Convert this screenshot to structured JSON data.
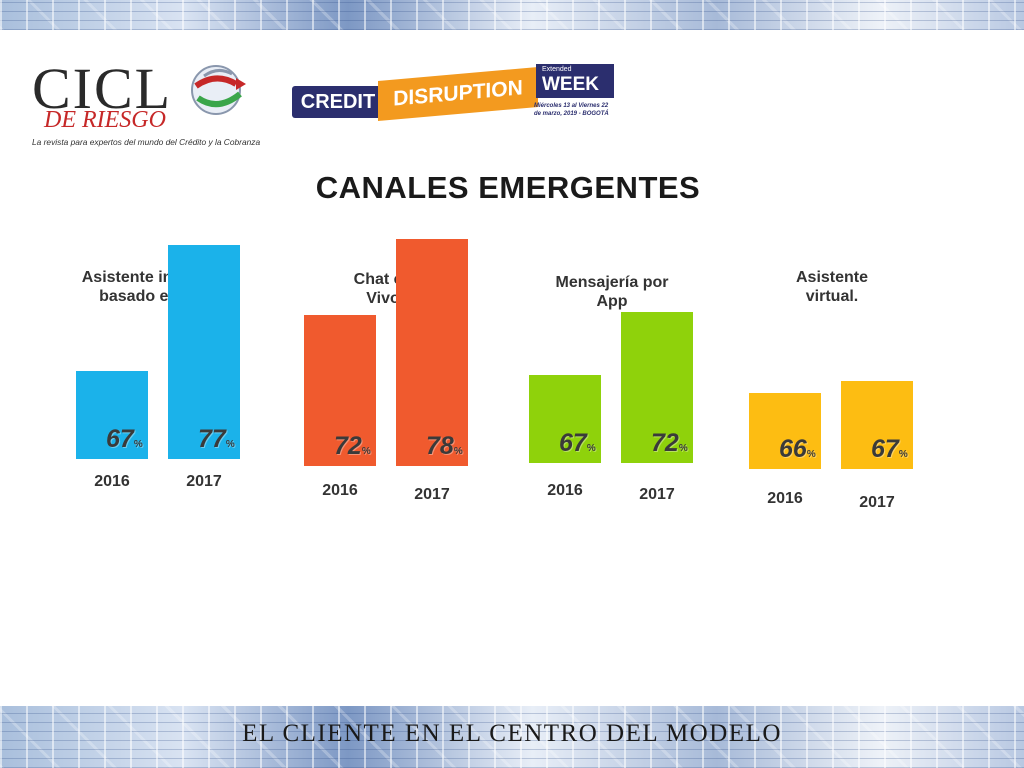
{
  "header": {
    "logo_ciclo": {
      "word": "CICL",
      "sub": "DE RIESGO",
      "tagline": "La revista para expertos del mundo del Crédito y la Cobranza"
    },
    "logo_event": {
      "credit": "CREDIT",
      "disruption": "DISRUPTION",
      "extended": "Extended",
      "week": "WEEK",
      "dates_line1": "Miércoles 13 al Viernes 22",
      "dates_line2": "de marzo, 2019 - BOGOTÁ"
    }
  },
  "title": "CANALES EMERGENTES",
  "footer": "EL CLIENTE  EN  EL  CENTRO  DEL  MODELO",
  "colors": {
    "group1": "#1bb2ea",
    "group2": "#f05a2e",
    "group3": "#8fd20b",
    "group4": "#fdbd12"
  },
  "chart_data": {
    "type": "bar",
    "title": "CANALES EMERGENTES",
    "value_suffix": "%",
    "groups": [
      {
        "label": "Asistente inteligente basado en texto",
        "label_lines": [
          "Asistente inteligente",
          "basado en texto"
        ],
        "color": "#1bb2ea",
        "categories": [
          "2016",
          "2017"
        ],
        "values": [
          67,
          77
        ]
      },
      {
        "label": "Chat en Vivo",
        "label_lines": [
          "Chat en",
          "Vivo"
        ],
        "color": "#f05a2e",
        "categories": [
          "2016",
          "2017"
        ],
        "values": [
          72,
          78
        ]
      },
      {
        "label": "Mensajería por App",
        "label_lines": [
          "Mensajería por",
          "App"
        ],
        "color": "#8fd20b",
        "categories": [
          "2016",
          "2017"
        ],
        "values": [
          67,
          72
        ]
      },
      {
        "label": "Asistente virtual.",
        "label_lines": [
          "Asistente",
          "virtual."
        ],
        "color": "#fdbd12",
        "categories": [
          "2016",
          "2017"
        ],
        "values": [
          66,
          67
        ]
      }
    ]
  }
}
